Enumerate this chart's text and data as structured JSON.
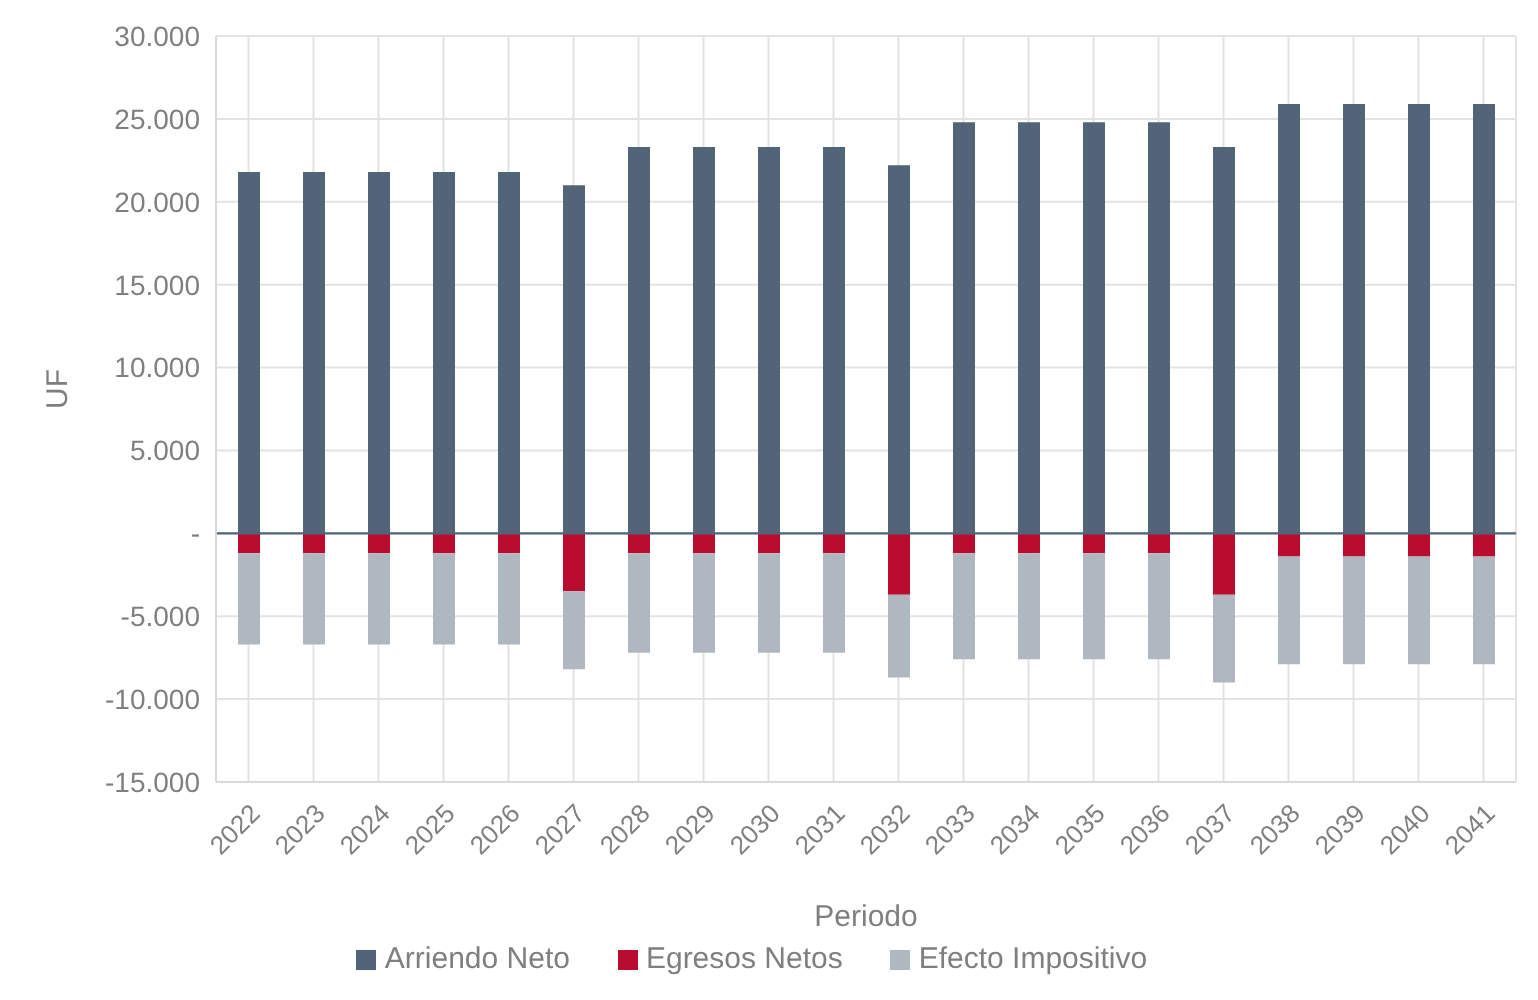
{
  "chart_data": {
    "type": "bar",
    "stacked": true,
    "xlabel": "Periodo",
    "ylabel": "UF",
    "categories": [
      "2022",
      "2023",
      "2024",
      "2025",
      "2026",
      "2027",
      "2028",
      "2029",
      "2030",
      "2031",
      "2032",
      "2033",
      "2034",
      "2035",
      "2036",
      "2037",
      "2038",
      "2039",
      "2040",
      "2041"
    ],
    "series": [
      {
        "name": "Arriendo Neto",
        "color": "#526477",
        "values": [
          21800,
          21800,
          21800,
          21800,
          21800,
          21000,
          23300,
          23300,
          23300,
          23300,
          22200,
          24800,
          24800,
          24800,
          24800,
          23300,
          25900,
          25900,
          25900,
          25900
        ]
      },
      {
        "name": "Egresos Netos",
        "color": "#ba0c2f",
        "values": [
          -1200,
          -1200,
          -1200,
          -1200,
          -1200,
          -3500,
          -1200,
          -1200,
          -1200,
          -1200,
          -3700,
          -1200,
          -1200,
          -1200,
          -1200,
          -3700,
          -1400,
          -1400,
          -1400,
          -1400
        ]
      },
      {
        "name": "Efecto Impositivo",
        "color": "#afb8c1",
        "values": [
          -5500,
          -5500,
          -5500,
          -5500,
          -5500,
          -4700,
          -6000,
          -6000,
          -6000,
          -6000,
          -5000,
          -6400,
          -6400,
          -6400,
          -6400,
          -5300,
          -6500,
          -6500,
          -6500,
          -6500
        ]
      }
    ],
    "ylim": [
      -15000,
      30000
    ],
    "yticks": [
      {
        "value": -15000,
        "label": "-15.000"
      },
      {
        "value": -10000,
        "label": "-10.000"
      },
      {
        "value": -5000,
        "label": "-5.000"
      },
      {
        "value": 0,
        "label": "-"
      },
      {
        "value": 5000,
        "label": "5.000"
      },
      {
        "value": 10000,
        "label": "10.000"
      },
      {
        "value": 15000,
        "label": "15.000"
      },
      {
        "value": 20000,
        "label": "20.000"
      },
      {
        "value": 25000,
        "label": "25.000"
      },
      {
        "value": 30000,
        "label": "30.000"
      }
    ],
    "grid": true,
    "legend": "bottom"
  }
}
